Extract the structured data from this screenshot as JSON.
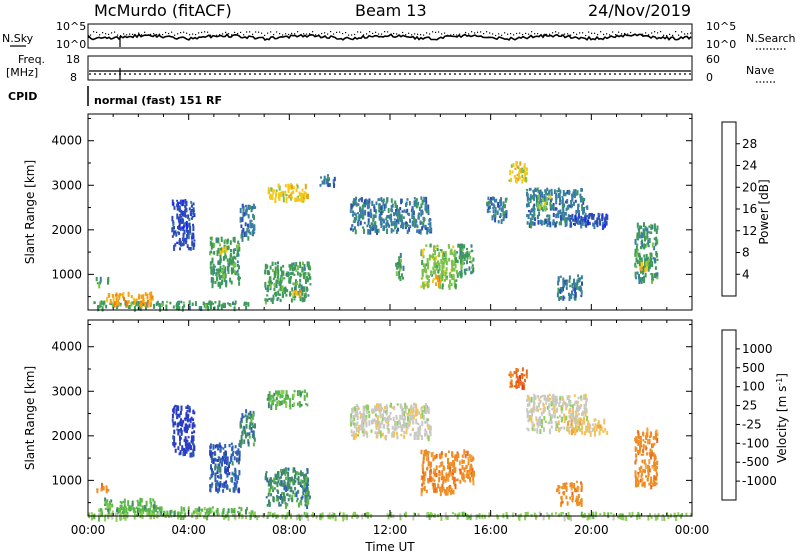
{
  "header": {
    "station": "McMurdo (fitACF)",
    "beam": "Beam 13",
    "date": "24/Nov/2019"
  },
  "aux_panels": {
    "nsky_label": "N.Sky",
    "nsky_ticks": [
      "10^5",
      "10^0"
    ],
    "nsearch_label": "N.Search",
    "nsearch_ticks": [
      "10^5",
      "10^0"
    ],
    "freq_label": "Freq.",
    "freq_unit": "[MHz]",
    "freq_ticks": [
      "18",
      "8"
    ],
    "nave_label": "Nave",
    "nave_ticks": [
      "60",
      "0"
    ],
    "cpid_label": "CPID",
    "cpid_value": "normal (fast) 151 RF"
  },
  "chart_data": [
    {
      "type": "heatmap",
      "name": "power",
      "ylabel": "Slant Range [km]",
      "xlabel": "",
      "xlim": [
        0,
        24
      ],
      "ylim": [
        200,
        4600
      ],
      "yticks": [
        "1000",
        "2000",
        "3000",
        "4000"
      ],
      "colorbar": {
        "label": "Power [dB]",
        "range": [
          0,
          32
        ],
        "ticks": [
          "4",
          "8",
          "12",
          "16",
          "20",
          "24",
          "28"
        ],
        "colors": [
          "#1c26f5",
          "#2c4db5",
          "#3a7fa1",
          "#3e9a5a",
          "#7cc24a",
          "#f2c81a",
          "#f2a015",
          "#ee7a12",
          "#e8400f",
          "#e21a12"
        ]
      },
      "patches": [
        {
          "t0": 0.3,
          "t1": 0.8,
          "r0": 800,
          "r1": 950,
          "v": 12
        },
        {
          "t0": 0.2,
          "t1": 6.5,
          "r0": 280,
          "r1": 420,
          "v": 10
        },
        {
          "t0": 0.7,
          "t1": 2.6,
          "r0": 360,
          "r1": 620,
          "v": 22
        },
        {
          "t0": 3.3,
          "t1": 4.2,
          "r0": 1600,
          "r1": 2700,
          "v": 6
        },
        {
          "t0": 4.8,
          "t1": 6.0,
          "r0": 800,
          "r1": 1850,
          "v": 10
        },
        {
          "t0": 5.2,
          "t1": 5.5,
          "r0": 1500,
          "r1": 1700,
          "v": 17
        },
        {
          "t0": 6.0,
          "t1": 6.6,
          "r0": 1850,
          "r1": 2600,
          "v": 7
        },
        {
          "t0": 7.0,
          "t1": 8.8,
          "r0": 450,
          "r1": 1300,
          "v": 12
        },
        {
          "t0": 7.1,
          "t1": 8.7,
          "r0": 2700,
          "r1": 3050,
          "v": 16
        },
        {
          "t0": 8.1,
          "t1": 8.4,
          "r0": 600,
          "r1": 700,
          "v": 20
        },
        {
          "t0": 9.2,
          "t1": 9.8,
          "r0": 3000,
          "r1": 3250,
          "v": 8
        },
        {
          "t0": 10.4,
          "t1": 13.6,
          "r0": 2000,
          "r1": 2750,
          "v": 7
        },
        {
          "t0": 12.2,
          "t1": 12.5,
          "r0": 900,
          "r1": 1500,
          "v": 12
        },
        {
          "t0": 13.2,
          "t1": 14.6,
          "r0": 750,
          "r1": 1700,
          "v": 14
        },
        {
          "t0": 13.7,
          "t1": 14.0,
          "r0": 800,
          "r1": 1000,
          "v": 22
        },
        {
          "t0": 14.6,
          "t1": 15.3,
          "r0": 1000,
          "r1": 1700,
          "v": 11
        },
        {
          "t0": 15.8,
          "t1": 16.6,
          "r0": 2200,
          "r1": 2750,
          "v": 7
        },
        {
          "t0": 16.7,
          "t1": 17.4,
          "r0": 3100,
          "r1": 3550,
          "v": 16
        },
        {
          "t0": 17.4,
          "t1": 19.8,
          "r0": 2150,
          "r1": 2950,
          "v": 8
        },
        {
          "t0": 17.8,
          "t1": 18.4,
          "r0": 2500,
          "r1": 2800,
          "v": 14
        },
        {
          "t0": 19.0,
          "t1": 20.6,
          "r0": 2100,
          "r1": 2400,
          "v": 6
        },
        {
          "t0": 18.6,
          "t1": 19.6,
          "r0": 500,
          "r1": 1000,
          "v": 9
        },
        {
          "t0": 21.7,
          "t1": 22.6,
          "r0": 900,
          "r1": 2200,
          "v": 12
        },
        {
          "t0": 21.9,
          "t1": 22.2,
          "r0": 1100,
          "r1": 1400,
          "v": 18
        }
      ]
    },
    {
      "type": "heatmap",
      "name": "velocity",
      "ylabel": "Slant Range [km]",
      "xlabel": "Time UT",
      "xlim": [
        0,
        24
      ],
      "ylim": [
        200,
        4600
      ],
      "xticks": [
        "00:00",
        "04:00",
        "08:00",
        "12:00",
        "16:00",
        "20:00",
        "00:00"
      ],
      "yticks": [
        "1000",
        "2000",
        "3000",
        "4000"
      ],
      "colorbar": {
        "label": "Velocity [m s^-1]",
        "ticks": [
          "1000",
          "500",
          "100",
          "25",
          "-25",
          "-100",
          "-500",
          "-1000"
        ],
        "colors": [
          "#2a3bc4",
          "#2f63b2",
          "#3f8a6a",
          "#5db84a",
          "#8cd05a",
          "#c9c9c4",
          "#f4c25a",
          "#f2a13b",
          "#ee8d25",
          "#ec6a1c",
          "#e4321c",
          "#e21a12"
        ]
      },
      "patches": [
        {
          "t0": 0.3,
          "t1": 0.8,
          "r0": 800,
          "r1": 950,
          "c": 8
        },
        {
          "t0": 0.2,
          "t1": 6.5,
          "r0": 280,
          "r1": 420,
          "c": 3
        },
        {
          "t0": 0.6,
          "t1": 2.7,
          "r0": 360,
          "r1": 620,
          "c": 3
        },
        {
          "t0": 3.3,
          "t1": 4.2,
          "r0": 1600,
          "r1": 2700,
          "c": 0
        },
        {
          "t0": 4.8,
          "t1": 6.0,
          "r0": 800,
          "r1": 1850,
          "c": 1
        },
        {
          "t0": 6.0,
          "t1": 6.6,
          "r0": 1850,
          "r1": 2600,
          "c": 2
        },
        {
          "t0": 7.0,
          "t1": 8.8,
          "r0": 450,
          "r1": 1300,
          "c": 2
        },
        {
          "t0": 7.1,
          "t1": 8.7,
          "r0": 2700,
          "r1": 3050,
          "c": 3
        },
        {
          "t0": 10.4,
          "t1": 13.6,
          "r0": 2000,
          "r1": 2750,
          "c": 5
        },
        {
          "t0": 13.2,
          "t1": 14.6,
          "r0": 750,
          "r1": 1700,
          "c": 8
        },
        {
          "t0": 14.6,
          "t1": 15.3,
          "r0": 1000,
          "r1": 1700,
          "c": 8
        },
        {
          "t0": 16.7,
          "t1": 17.4,
          "r0": 3100,
          "r1": 3550,
          "c": 9
        },
        {
          "t0": 17.4,
          "t1": 19.8,
          "r0": 2150,
          "r1": 2950,
          "c": 5
        },
        {
          "t0": 19.0,
          "t1": 20.6,
          "r0": 2100,
          "r1": 2400,
          "c": 6
        },
        {
          "t0": 18.6,
          "t1": 19.6,
          "r0": 500,
          "r1": 1000,
          "c": 8
        },
        {
          "t0": 21.7,
          "t1": 22.6,
          "r0": 900,
          "r1": 2200,
          "c": 8
        },
        {
          "t0": 0.0,
          "t1": 24.0,
          "r0": 200,
          "r1": 300,
          "c": 4
        }
      ]
    }
  ]
}
